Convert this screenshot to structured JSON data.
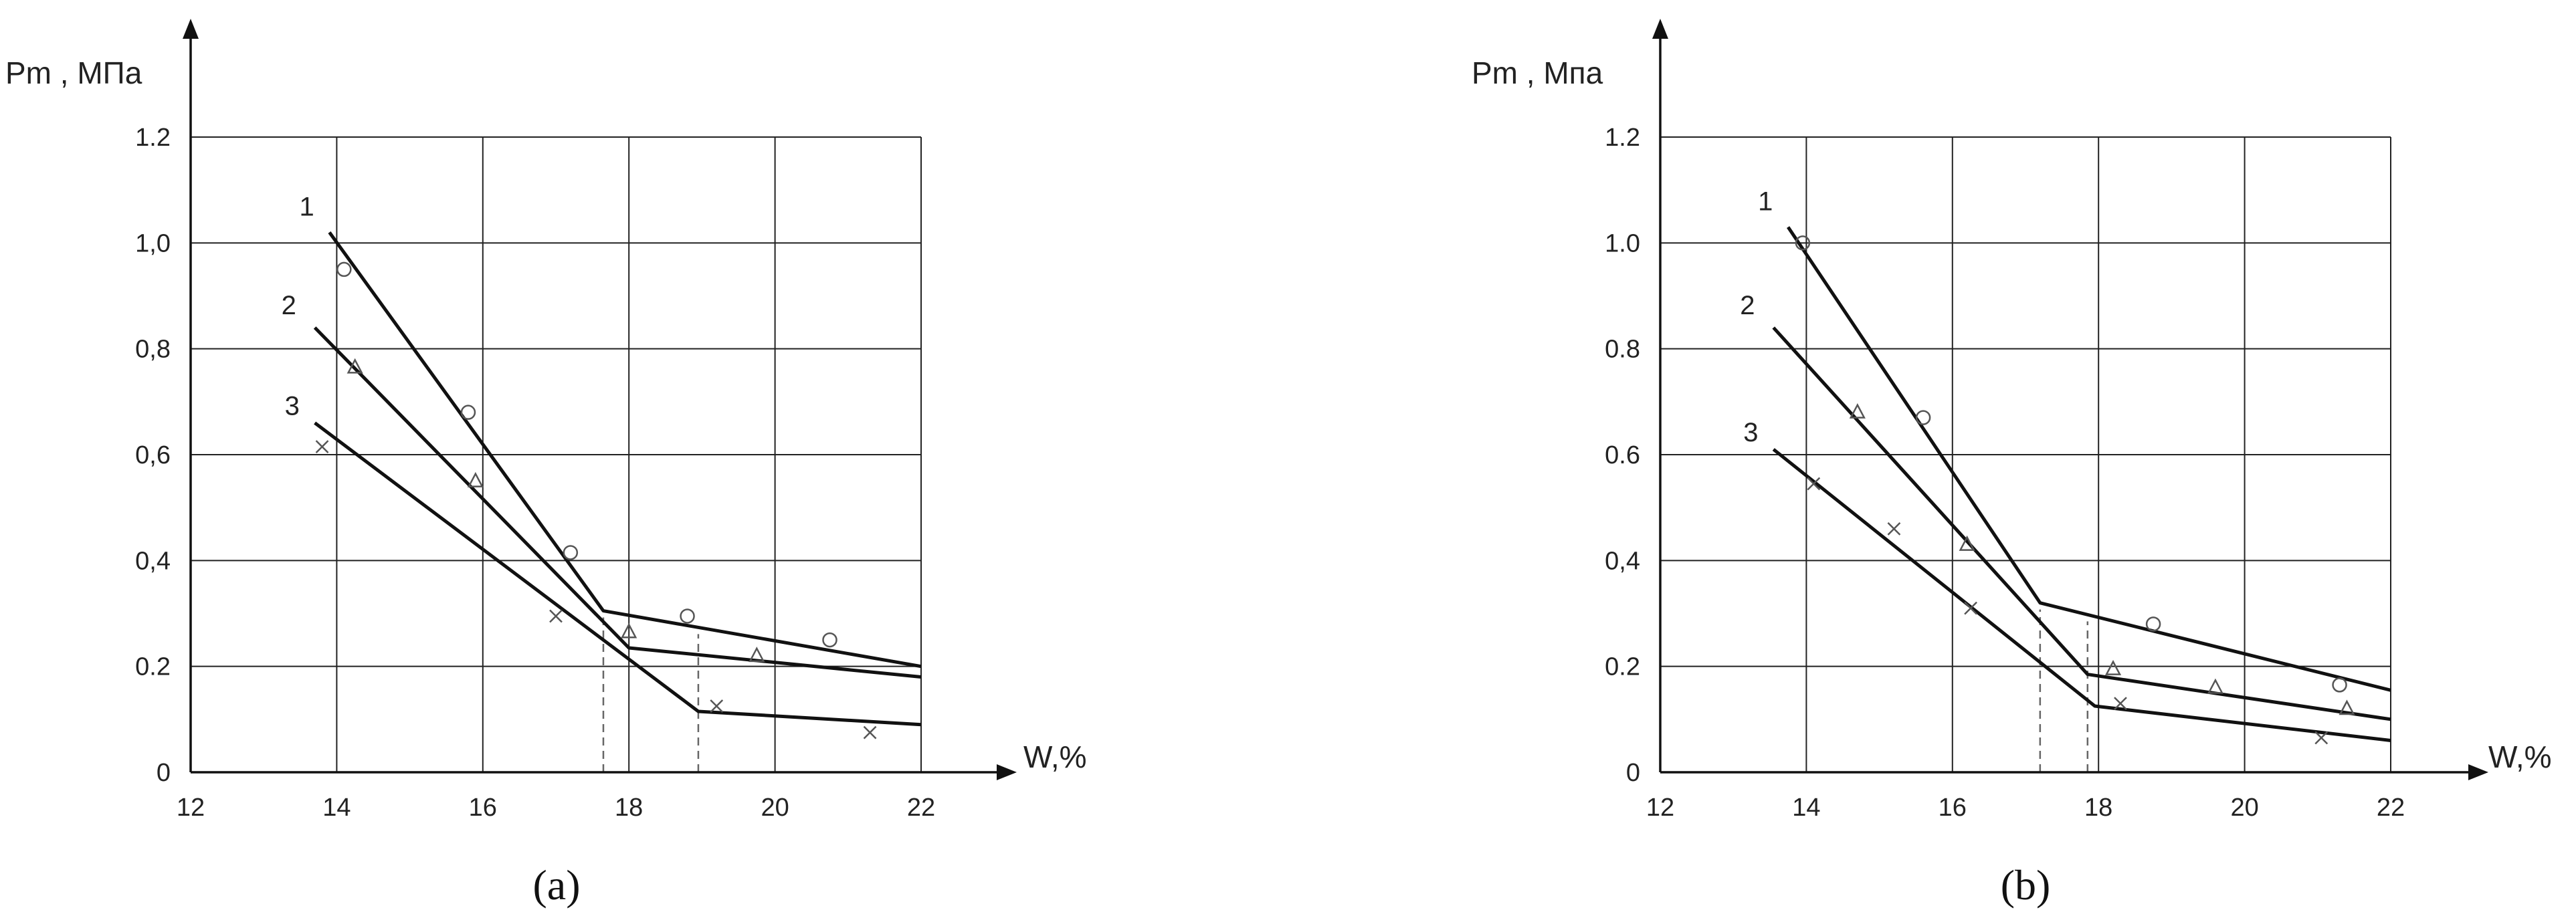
{
  "chart_data": [
    {
      "type": "line",
      "caption": "(a)",
      "ylabel": "Pm , МПа",
      "xlabel": "W,%",
      "xlim": [
        12,
        22
      ],
      "ylim": [
        0,
        1.2
      ],
      "x_ticks": [
        12,
        14,
        16,
        18,
        20,
        22
      ],
      "x_tick_labels": [
        "12",
        "14",
        "16",
        "18",
        "20",
        "22"
      ],
      "y_ticks": [
        0,
        0.2,
        0.4,
        0.6,
        0.8,
        1.0,
        1.2
      ],
      "y_tick_labels": [
        "0",
        "0.2",
        "0,4",
        "0,6",
        "0,8",
        "1,0",
        "1.2"
      ],
      "grid": true,
      "series": [
        {
          "name": "1",
          "points": [
            [
              13.9,
              1.02
            ],
            [
              17.65,
              0.305
            ],
            [
              22,
              0.2
            ]
          ],
          "markers": {
            "symbol": "circle",
            "points": [
              [
                14.1,
                0.95
              ],
              [
                15.8,
                0.68
              ],
              [
                17.2,
                0.415
              ],
              [
                18.8,
                0.295
              ],
              [
                20.75,
                0.25
              ]
            ]
          }
        },
        {
          "name": "2",
          "points": [
            [
              13.7,
              0.84
            ],
            [
              18.0,
              0.235
            ],
            [
              22,
              0.18
            ]
          ],
          "markers": {
            "symbol": "triangle",
            "points": [
              [
                14.25,
                0.765
              ],
              [
                15.9,
                0.55
              ],
              [
                18.0,
                0.265
              ],
              [
                19.75,
                0.22
              ]
            ]
          }
        },
        {
          "name": "3",
          "points": [
            [
              13.7,
              0.66
            ],
            [
              18.95,
              0.115
            ],
            [
              22,
              0.09
            ]
          ],
          "markers": {
            "symbol": "cross",
            "points": [
              [
                13.8,
                0.615
              ],
              [
                17.0,
                0.295
              ],
              [
                19.2,
                0.125
              ],
              [
                21.3,
                0.075
              ]
            ]
          }
        }
      ],
      "dashed_x": [
        17.65,
        18.95
      ]
    },
    {
      "type": "line",
      "caption": "(b)",
      "ylabel": "Pm , Мпа",
      "xlabel": "W,%",
      "xlim": [
        12,
        22
      ],
      "ylim": [
        0,
        1.2
      ],
      "x_ticks": [
        12,
        14,
        16,
        18,
        20,
        22
      ],
      "x_tick_labels": [
        "12",
        "14",
        "16",
        "18",
        "20",
        "22"
      ],
      "y_ticks": [
        0,
        0.2,
        0.4,
        0.6,
        0.8,
        1.0,
        1.2
      ],
      "y_tick_labels": [
        "0",
        "0.2",
        "0,4",
        "0.6",
        "0.8",
        "1.0",
        "1.2"
      ],
      "grid": true,
      "series": [
        {
          "name": "1",
          "points": [
            [
              13.75,
              1.03
            ],
            [
              17.2,
              0.32
            ],
            [
              22,
              0.155
            ]
          ],
          "markers": {
            "symbol": "circle",
            "points": [
              [
                13.95,
                1.0
              ],
              [
                15.6,
                0.67
              ],
              [
                18.75,
                0.28
              ],
              [
                21.3,
                0.165
              ]
            ]
          }
        },
        {
          "name": "2",
          "points": [
            [
              13.55,
              0.84
            ],
            [
              17.85,
              0.185
            ],
            [
              22,
              0.1
            ]
          ],
          "markers": {
            "symbol": "triangle",
            "points": [
              [
                14.7,
                0.68
              ],
              [
                16.2,
                0.43
              ],
              [
                18.2,
                0.195
              ],
              [
                19.6,
                0.16
              ],
              [
                21.4,
                0.12
              ]
            ]
          }
        },
        {
          "name": "3",
          "points": [
            [
              13.55,
              0.61
            ],
            [
              17.95,
              0.125
            ],
            [
              22,
              0.06
            ]
          ],
          "markers": {
            "symbol": "cross",
            "points": [
              [
                14.1,
                0.545
              ],
              [
                15.2,
                0.46
              ],
              [
                16.25,
                0.31
              ],
              [
                18.3,
                0.13
              ],
              [
                21.05,
                0.065
              ]
            ]
          }
        }
      ],
      "dashed_x": [
        17.2,
        17.85
      ]
    }
  ]
}
